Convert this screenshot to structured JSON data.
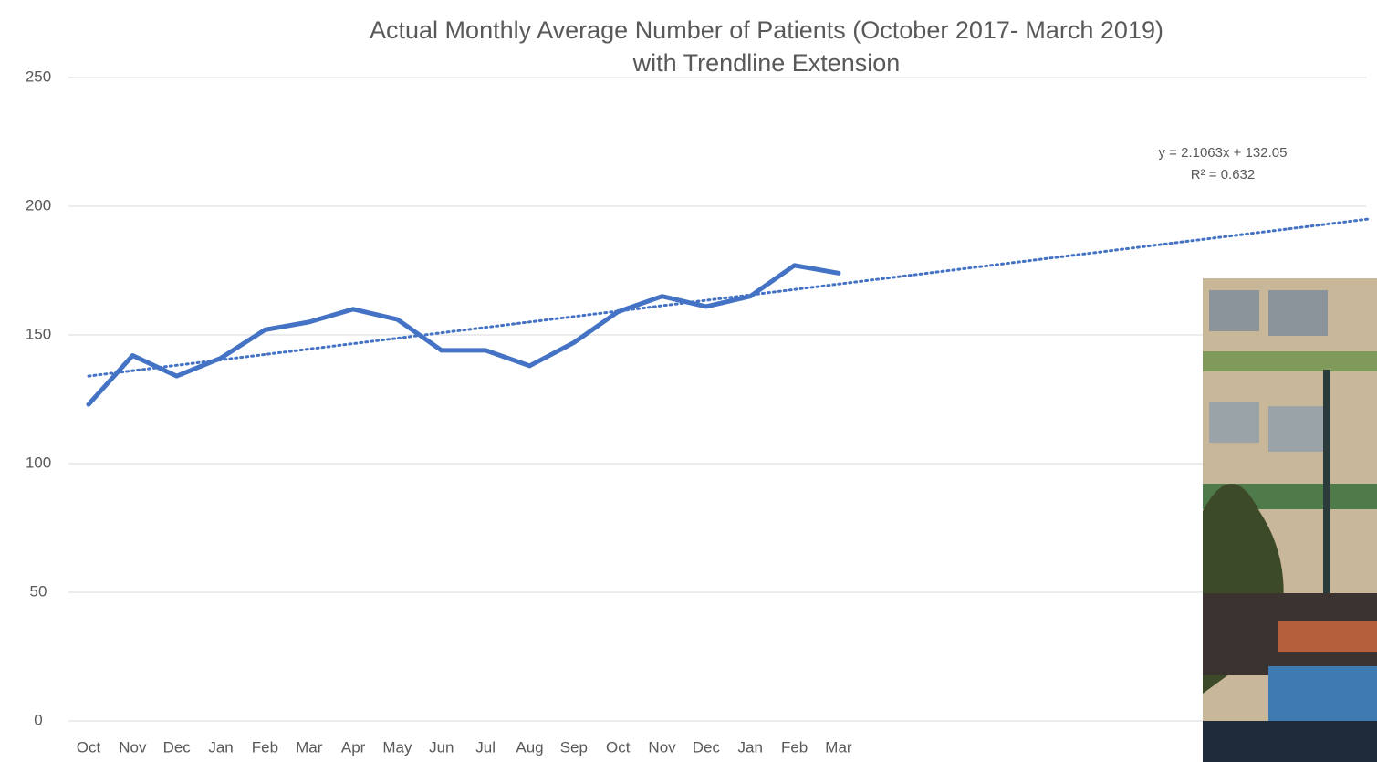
{
  "chart_data": {
    "type": "line",
    "title": [
      "Actual Monthly Average Number of Patients (October 2017- March 2019)",
      "with Trendline Extension"
    ],
    "categories": [
      "Oct",
      "Nov",
      "Dec",
      "Jan",
      "Feb",
      "Mar",
      "Apr",
      "May",
      "Jun",
      "Jul",
      "Aug",
      "Sep",
      "Oct",
      "Nov",
      "Dec",
      "Jan",
      "Feb",
      "Mar"
    ],
    "series": [
      {
        "color": "#4472c4",
        "values": [
          123,
          142,
          134,
          141,
          152,
          155,
          160,
          156,
          144,
          144,
          138,
          147,
          159,
          165,
          161,
          165,
          177,
          174
        ]
      }
    ],
    "trendline": {
      "x": [
        1,
        30
      ],
      "values": [
        134,
        195
      ],
      "color": "#4472c4",
      "equation": "y = 2.1063x + 132.05",
      "r_squared": "R² = 0.632"
    },
    "ylim": [
      0,
      250
    ],
    "yticks": [
      0,
      50,
      100,
      150,
      200,
      250
    ],
    "grid": true
  }
}
